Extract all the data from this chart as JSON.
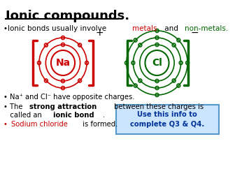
{
  "title": "Ionic compounds.",
  "bg_color": "#ffffff",
  "title_color": "#000000",
  "title_fontsize": 13,
  "line1_parts": [
    {
      "text": "•Ionic bonds usually involve ",
      "color": "#000000",
      "bold": false
    },
    {
      "text": "metals",
      "color": "#cc0000",
      "bold": false
    },
    {
      "text": " and ",
      "color": "#000000",
      "bold": false
    },
    {
      "text": "non-metals.",
      "color": "#006600",
      "bold": false
    }
  ],
  "na_color": "#cc0000",
  "cl_color": "#006600",
  "bullet1": "• Na⁺ and Cl⁻ have opposite charges.",
  "box_text": "Use this info to\ncomplete Q3 & Q4.",
  "box_bg": "#cce5ff",
  "box_border": "#5599cc"
}
